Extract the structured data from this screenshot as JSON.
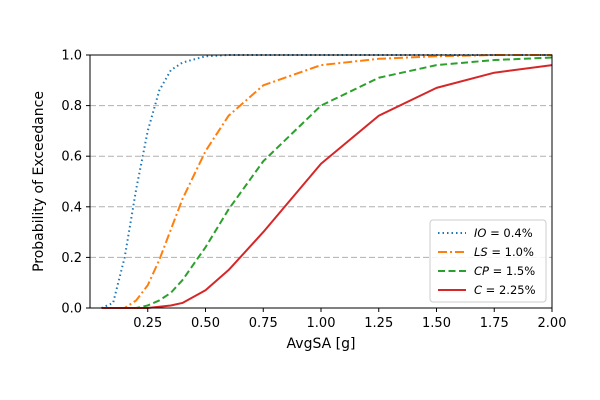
{
  "chart_data": {
    "type": "line",
    "title": "",
    "xlabel": "AvgSA [g]",
    "ylabel": "Probability of Exceedance",
    "xlim": [
      0.0,
      2.0
    ],
    "ylim": [
      0.0,
      1.0
    ],
    "x_ticks": [
      "0.25",
      "0.50",
      "0.75",
      "1.00",
      "1.25",
      "1.50",
      "1.75",
      "2.00"
    ],
    "y_ticks": [
      "0.0",
      "0.2",
      "0.4",
      "0.6",
      "0.8",
      "1.0"
    ],
    "grid": "horizontal dashed",
    "legend_position": "lower-right",
    "x": [
      0.05,
      0.1,
      0.15,
      0.2,
      0.25,
      0.3,
      0.35,
      0.4,
      0.5,
      0.6,
      0.75,
      1.0,
      1.25,
      1.5,
      1.75,
      2.0
    ],
    "series": [
      {
        "name": "IO",
        "legend_value": "0.4%",
        "color": "#1f77b4",
        "dash": "dotted",
        "values": [
          0.0,
          0.02,
          0.2,
          0.47,
          0.7,
          0.86,
          0.94,
          0.97,
          0.995,
          1.0,
          1.0,
          1.0,
          1.0,
          1.0,
          1.0,
          1.0
        ]
      },
      {
        "name": "LS",
        "legend_value": "1.0%",
        "color": "#ff7f0e",
        "dash": "dashdot",
        "values": [
          0.0,
          0.0,
          0.0,
          0.03,
          0.09,
          0.19,
          0.31,
          0.43,
          0.62,
          0.76,
          0.88,
          0.96,
          0.985,
          0.995,
          1.0,
          1.0
        ]
      },
      {
        "name": "CP",
        "legend_value": "1.5%",
        "color": "#2ca02c",
        "dash": "dashed",
        "values": [
          0.0,
          0.0,
          0.0,
          0.0,
          0.01,
          0.03,
          0.06,
          0.11,
          0.24,
          0.39,
          0.58,
          0.8,
          0.91,
          0.96,
          0.98,
          0.99
        ]
      },
      {
        "name": "C",
        "legend_value": "2.25%",
        "color": "#d62728",
        "dash": "solid",
        "values": [
          0.0,
          0.0,
          0.0,
          0.0,
          0.0,
          0.005,
          0.01,
          0.02,
          0.07,
          0.15,
          0.3,
          0.57,
          0.76,
          0.87,
          0.93,
          0.96
        ]
      }
    ]
  }
}
